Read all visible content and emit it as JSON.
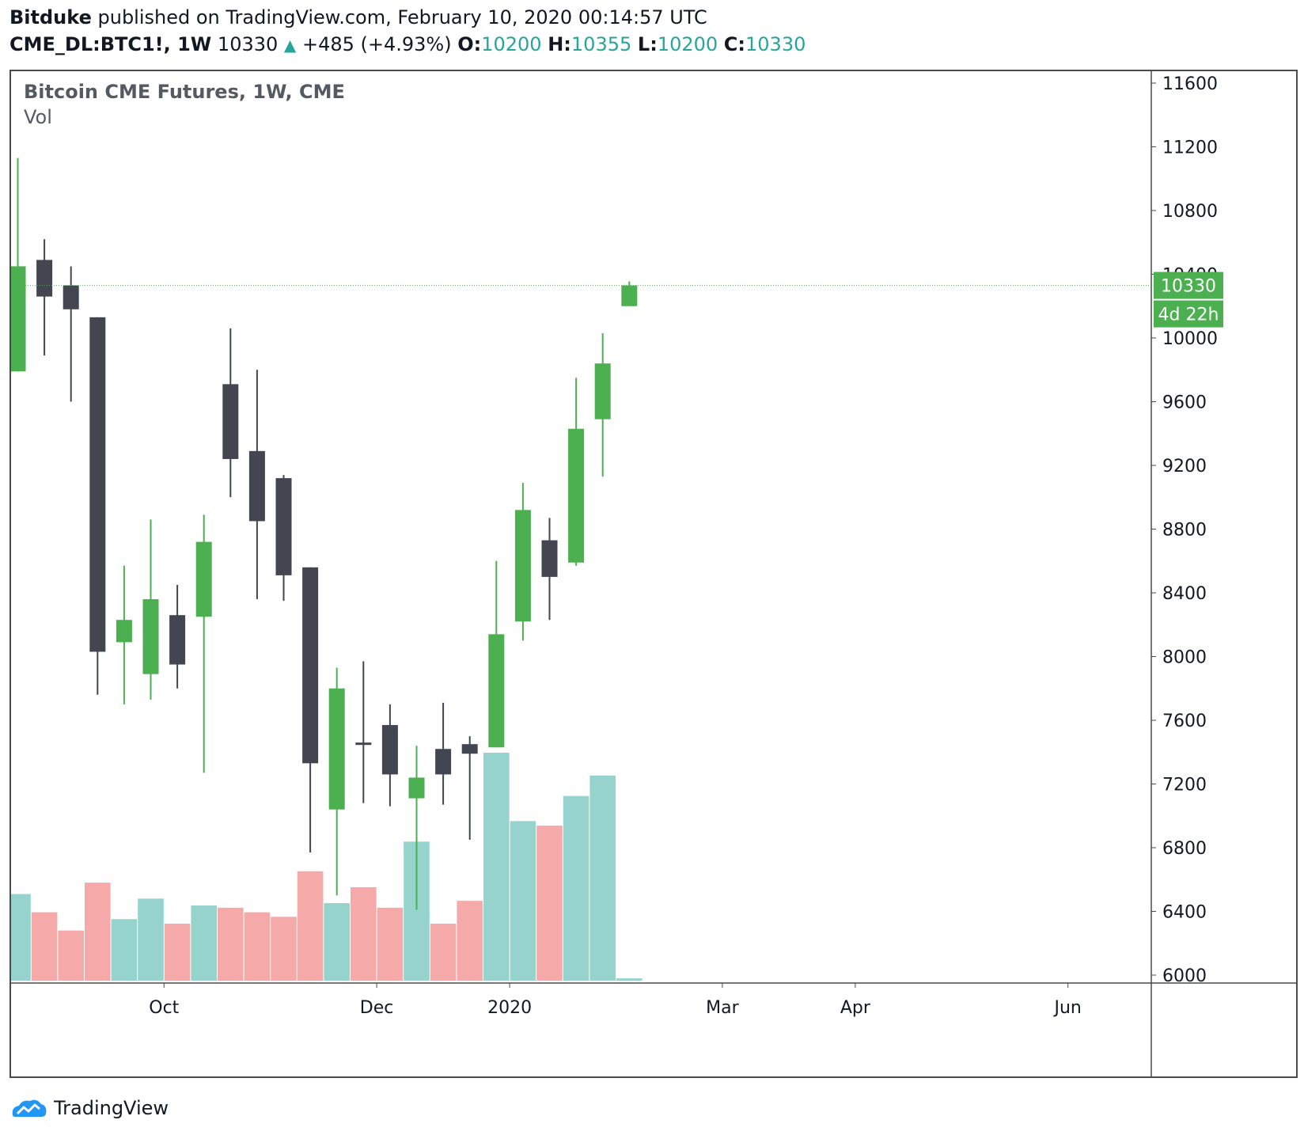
{
  "header": {
    "author": "Bitduke",
    "published_text": "published on TradingView.com, February 10, 2020 00:14:57 UTC",
    "symbol": "CME_DL:BTC1!, 1W",
    "last": "10330",
    "change": "+485 (+4.93%)",
    "o_label": "O:",
    "o_value": "10200",
    "h_label": "H:",
    "h_value": "10355",
    "l_label": "L:",
    "l_value": "10200",
    "c_label": "C:",
    "c_value": "10330"
  },
  "footer": {
    "brand": "TradingView",
    "logo_icon": "tradingview-logo-icon"
  },
  "colors": {
    "up": "#4caf50",
    "down": "#434651",
    "vol_up": "#96d3cc",
    "vol_down": "#f5a9a9",
    "price_line": "#4caf50"
  },
  "chart_data": {
    "type": "candlestick",
    "title": "Bitcoin CME Futures, 1W, CME",
    "volume_label": "Vol",
    "y_ticks": [
      6000,
      6400,
      6800,
      7200,
      7600,
      8000,
      8400,
      8800,
      9200,
      9600,
      10000,
      10400,
      10800,
      11200,
      11600
    ],
    "ylim": [
      6000,
      11600
    ],
    "x_tick_labels": [
      {
        "label": "Oct",
        "after_candle": 5
      },
      {
        "label": "Dec",
        "after_candle": 13
      },
      {
        "label": "2020",
        "after_candle": 18
      },
      {
        "label": "Mar",
        "after_candle": 26
      },
      {
        "label": "Apr",
        "after_candle": 31
      },
      {
        "label": "Jun",
        "after_candle": 39
      }
    ],
    "last_price_label": "10330",
    "countdown_label": "4d 22h",
    "candles": [
      {
        "o": 9790,
        "h": 11130,
        "l": 9790,
        "c": 10450
      },
      {
        "o": 10490,
        "h": 10620,
        "l": 9890,
        "c": 10260
      },
      {
        "o": 10330,
        "h": 10450,
        "l": 9600,
        "c": 10180
      },
      {
        "o": 10130,
        "h": 10130,
        "l": 7760,
        "c": 8030
      },
      {
        "o": 8090,
        "h": 8570,
        "l": 7700,
        "c": 8230
      },
      {
        "o": 7890,
        "h": 8860,
        "l": 7730,
        "c": 8360
      },
      {
        "o": 8260,
        "h": 8450,
        "l": 7800,
        "c": 7950
      },
      {
        "o": 8250,
        "h": 8890,
        "l": 7270,
        "c": 8720
      },
      {
        "o": 9710,
        "h": 10060,
        "l": 9000,
        "c": 9240
      },
      {
        "o": 9290,
        "h": 9800,
        "l": 8360,
        "c": 8850
      },
      {
        "o": 9120,
        "h": 9140,
        "l": 8350,
        "c": 8510
      },
      {
        "o": 8560,
        "h": 8560,
        "l": 6770,
        "c": 7330
      },
      {
        "o": 7040,
        "h": 7930,
        "l": 6500,
        "c": 7800
      },
      {
        "o": 7460,
        "h": 7970,
        "l": 7080,
        "c": 7450
      },
      {
        "o": 7570,
        "h": 7700,
        "l": 7060,
        "c": 7260
      },
      {
        "o": 7110,
        "h": 7440,
        "l": 6410,
        "c": 7240
      },
      {
        "o": 7420,
        "h": 7710,
        "l": 7070,
        "c": 7260
      },
      {
        "o": 7450,
        "h": 7500,
        "l": 6850,
        "c": 7390
      },
      {
        "o": 7430,
        "h": 8600,
        "l": 7430,
        "c": 8140
      },
      {
        "o": 8220,
        "h": 9090,
        "l": 8100,
        "c": 8920
      },
      {
        "o": 8730,
        "h": 8870,
        "l": 8230,
        "c": 8500
      },
      {
        "o": 8590,
        "h": 9750,
        "l": 8570,
        "c": 9430
      },
      {
        "o": 9490,
        "h": 10030,
        "l": 9130,
        "c": 9840
      },
      {
        "o": 10200,
        "h": 10355,
        "l": 10200,
        "c": 10330
      }
    ],
    "volume": {
      "max": 100,
      "values": [
        {
          "v": 38,
          "up": true
        },
        {
          "v": 30,
          "up": false
        },
        {
          "v": 22,
          "up": false
        },
        {
          "v": 43,
          "up": false
        },
        {
          "v": 27,
          "up": true
        },
        {
          "v": 36,
          "up": true
        },
        {
          "v": 25,
          "up": false
        },
        {
          "v": 33,
          "up": true
        },
        {
          "v": 32,
          "up": false
        },
        {
          "v": 30,
          "up": false
        },
        {
          "v": 28,
          "up": false
        },
        {
          "v": 48,
          "up": false
        },
        {
          "v": 34,
          "up": true
        },
        {
          "v": 41,
          "up": false
        },
        {
          "v": 32,
          "up": false
        },
        {
          "v": 61,
          "up": true
        },
        {
          "v": 25,
          "up": false
        },
        {
          "v": 35,
          "up": false
        },
        {
          "v": 100,
          "up": true
        },
        {
          "v": 70,
          "up": true
        },
        {
          "v": 68,
          "up": false
        },
        {
          "v": 81,
          "up": true
        },
        {
          "v": 90,
          "up": true
        },
        {
          "v": 1,
          "up": true
        }
      ]
    }
  }
}
